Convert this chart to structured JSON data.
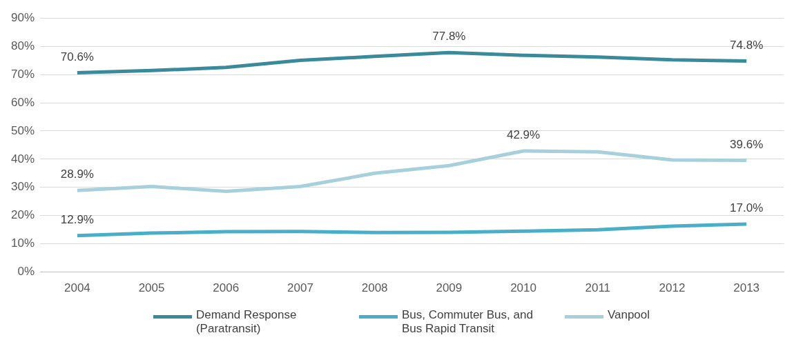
{
  "chart_data": {
    "type": "line",
    "categories": [
      "2004",
      "2005",
      "2006",
      "2007",
      "2008",
      "2009",
      "2010",
      "2011",
      "2012",
      "2013"
    ],
    "series": [
      {
        "name": "Demand Response (Paratransit)",
        "color": "#3a8a9c",
        "values": [
          70.6,
          71.4,
          72.5,
          75.0,
          76.4,
          77.8,
          76.8,
          76.2,
          75.2,
          74.8
        ],
        "value_labels": [
          "70.6%",
          null,
          null,
          null,
          null,
          "77.8%",
          null,
          null,
          null,
          "74.8%"
        ]
      },
      {
        "name": "Bus, Commuter Bus, and Bus Rapid Transit",
        "color": "#4aaec8",
        "values": [
          12.9,
          13.8,
          14.3,
          14.4,
          14.0,
          14.1,
          14.5,
          15.0,
          16.3,
          17.0
        ],
        "value_labels": [
          "12.9%",
          null,
          null,
          null,
          null,
          null,
          null,
          null,
          null,
          "17.0%"
        ]
      },
      {
        "name": "Vanpool",
        "color": "#a8d0dc",
        "values": [
          28.9,
          30.3,
          28.6,
          30.3,
          35.0,
          37.7,
          42.9,
          42.6,
          39.7,
          39.6
        ],
        "value_labels": [
          "28.9%",
          null,
          null,
          null,
          null,
          null,
          "42.9%",
          null,
          null,
          "39.6%"
        ]
      }
    ],
    "ylim": [
      0,
      90
    ],
    "yticks": [
      {
        "value": 0,
        "label": "0%"
      },
      {
        "value": 10,
        "label": "10%"
      },
      {
        "value": 20,
        "label": "20%"
      },
      {
        "value": 30,
        "label": "30%"
      },
      {
        "value": 40,
        "label": "40%"
      },
      {
        "value": 50,
        "label": "50%"
      },
      {
        "value": 60,
        "label": "60%"
      },
      {
        "value": 70,
        "label": "70%"
      },
      {
        "value": 80,
        "label": "80%"
      },
      {
        "value": 90,
        "label": "90%"
      }
    ],
    "grid": "y",
    "legend": "bottom",
    "marker": "none",
    "line_style": "solid"
  }
}
